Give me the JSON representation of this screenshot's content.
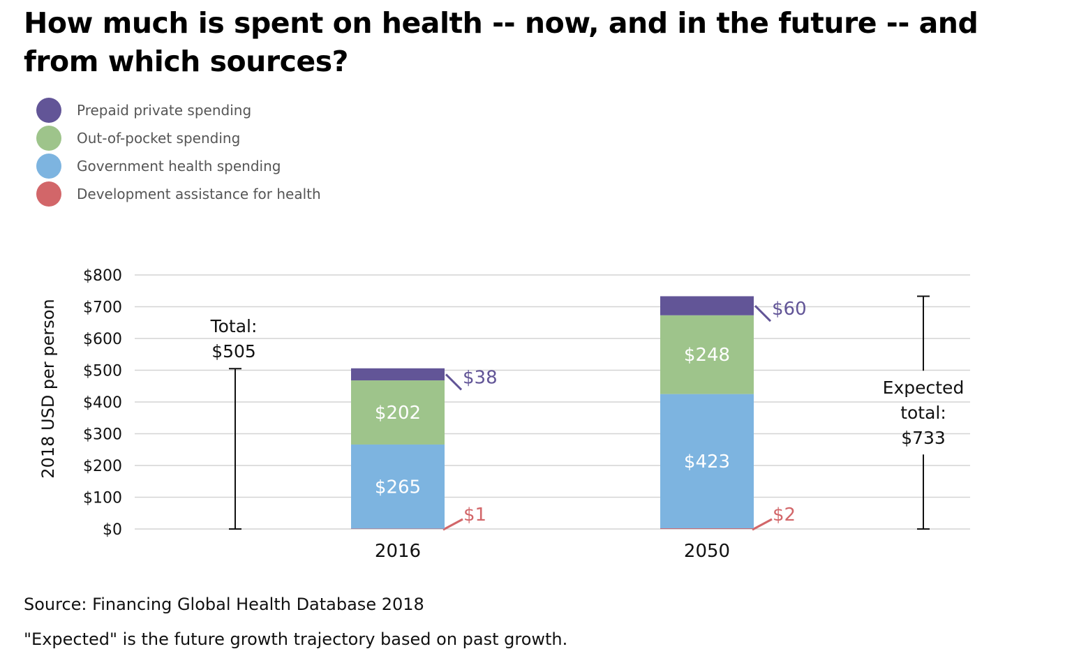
{
  "title": "How much is spent on health -- now, and in the future -- and from which sources?",
  "legend": [
    {
      "label": "Prepaid private spending",
      "color": "#625597"
    },
    {
      "label": "Out-of-pocket spending",
      "color": "#9ec48b"
    },
    {
      "label": "Government health spending",
      "color": "#7db4e0"
    },
    {
      "label": "Development assistance for health",
      "color": "#d26669"
    }
  ],
  "chart_data": {
    "type": "bar",
    "stacked": true,
    "categories": [
      "2016",
      "2050"
    ],
    "series": [
      {
        "name": "Development assistance for health",
        "values": [
          1,
          2
        ],
        "labels": [
          "$1",
          "$2"
        ],
        "color": "#d26669"
      },
      {
        "name": "Government health spending",
        "values": [
          265,
          423
        ],
        "labels": [
          "$265",
          "$423"
        ],
        "color": "#7db4e0"
      },
      {
        "name": "Out-of-pocket spending",
        "values": [
          202,
          248
        ],
        "labels": [
          "$202",
          "$248"
        ],
        "color": "#9ec48b"
      },
      {
        "name": "Prepaid private spending",
        "values": [
          38,
          60
        ],
        "labels": [
          "$38",
          "$60"
        ],
        "color": "#625597"
      }
    ],
    "ylabel": "2018 USD per person",
    "ylim": [
      0,
      800
    ],
    "yticks": [
      0,
      100,
      200,
      300,
      400,
      500,
      600,
      700,
      800
    ],
    "ytick_labels": [
      "$0",
      "$100",
      "$200",
      "$300",
      "$400",
      "$500",
      "$600",
      "$700",
      "$800"
    ],
    "grid": true,
    "totals": [
      {
        "value": 505,
        "lines": [
          "Total:",
          "$505"
        ]
      },
      {
        "value": 733,
        "lines": [
          "Expected",
          "total:",
          "$733"
        ]
      }
    ]
  },
  "source": "Source: Financing Global Health Database 2018",
  "footnote": "\"Expected\" is the future growth trajectory based on past growth."
}
